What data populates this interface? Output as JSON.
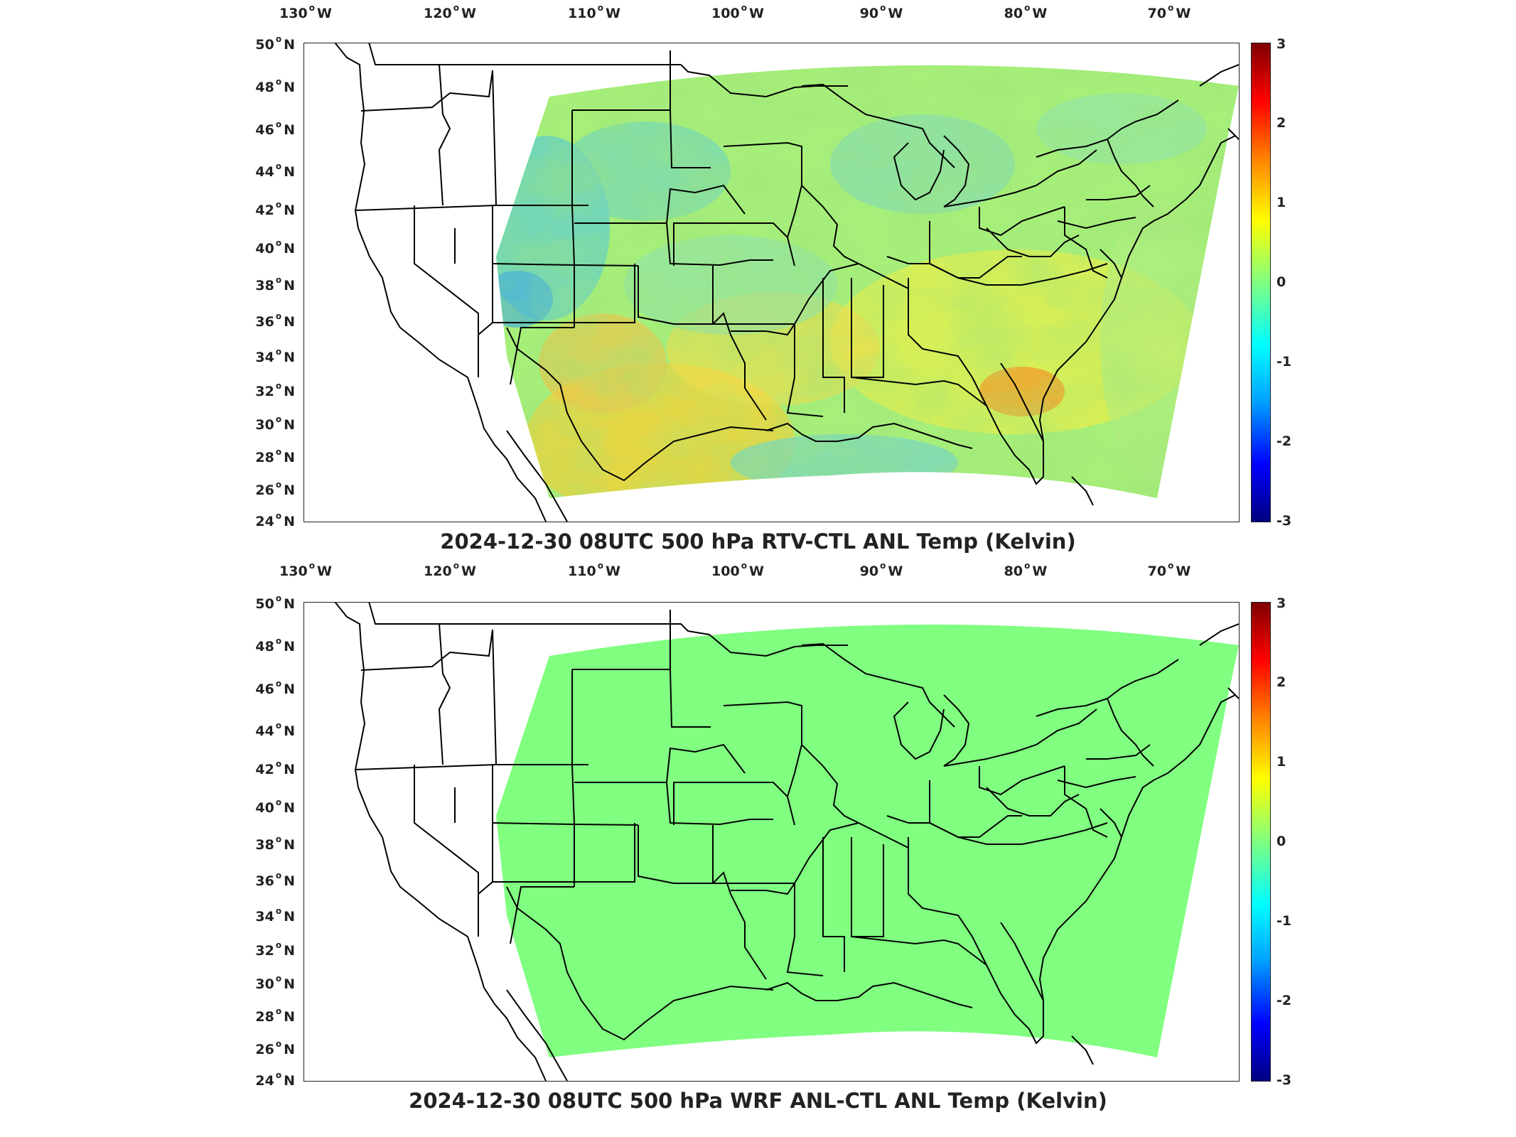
{
  "panels": [
    {
      "title": "2024-12-30 08UTC 500 hPa RTV-CTL ANL Temp (Kelvin)",
      "field": "varied"
    },
    {
      "title": "2024-12-30 08UTC 500 hPa WRF ANL-CTL ANL Temp (Kelvin)",
      "field": "uniform"
    }
  ],
  "axes": {
    "lon_labels": [
      {
        "deg": "130",
        "hemi": "W"
      },
      {
        "deg": "120",
        "hemi": "W"
      },
      {
        "deg": "110",
        "hemi": "W"
      },
      {
        "deg": "100",
        "hemi": "W"
      },
      {
        "deg": "90",
        "hemi": "W"
      },
      {
        "deg": "80",
        "hemi": "W"
      },
      {
        "deg": "70",
        "hemi": "W"
      }
    ],
    "lat_labels": [
      {
        "deg": "50",
        "hemi": "N"
      },
      {
        "deg": "48",
        "hemi": "N"
      },
      {
        "deg": "46",
        "hemi": "N"
      },
      {
        "deg": "44",
        "hemi": "N"
      },
      {
        "deg": "42",
        "hemi": "N"
      },
      {
        "deg": "40",
        "hemi": "N"
      },
      {
        "deg": "38",
        "hemi": "N"
      },
      {
        "deg": "36",
        "hemi": "N"
      },
      {
        "deg": "34",
        "hemi": "N"
      },
      {
        "deg": "32",
        "hemi": "N"
      },
      {
        "deg": "30",
        "hemi": "N"
      },
      {
        "deg": "28",
        "hemi": "N"
      },
      {
        "deg": "26",
        "hemi": "N"
      },
      {
        "deg": "24",
        "hemi": "N"
      }
    ]
  },
  "colorbar": {
    "ticks": [
      "3",
      "2",
      "1",
      "0",
      "-1",
      "-2",
      "-3"
    ],
    "range": [
      -3,
      3
    ],
    "colors": [
      "#000080",
      "#0000ff",
      "#00a0ff",
      "#00ffff",
      "#80ff80",
      "#ffff00",
      "#ff8000",
      "#ff0000",
      "#800000"
    ]
  },
  "colors": {
    "uniform_field": "#80ff80",
    "outline": "#000000"
  }
}
